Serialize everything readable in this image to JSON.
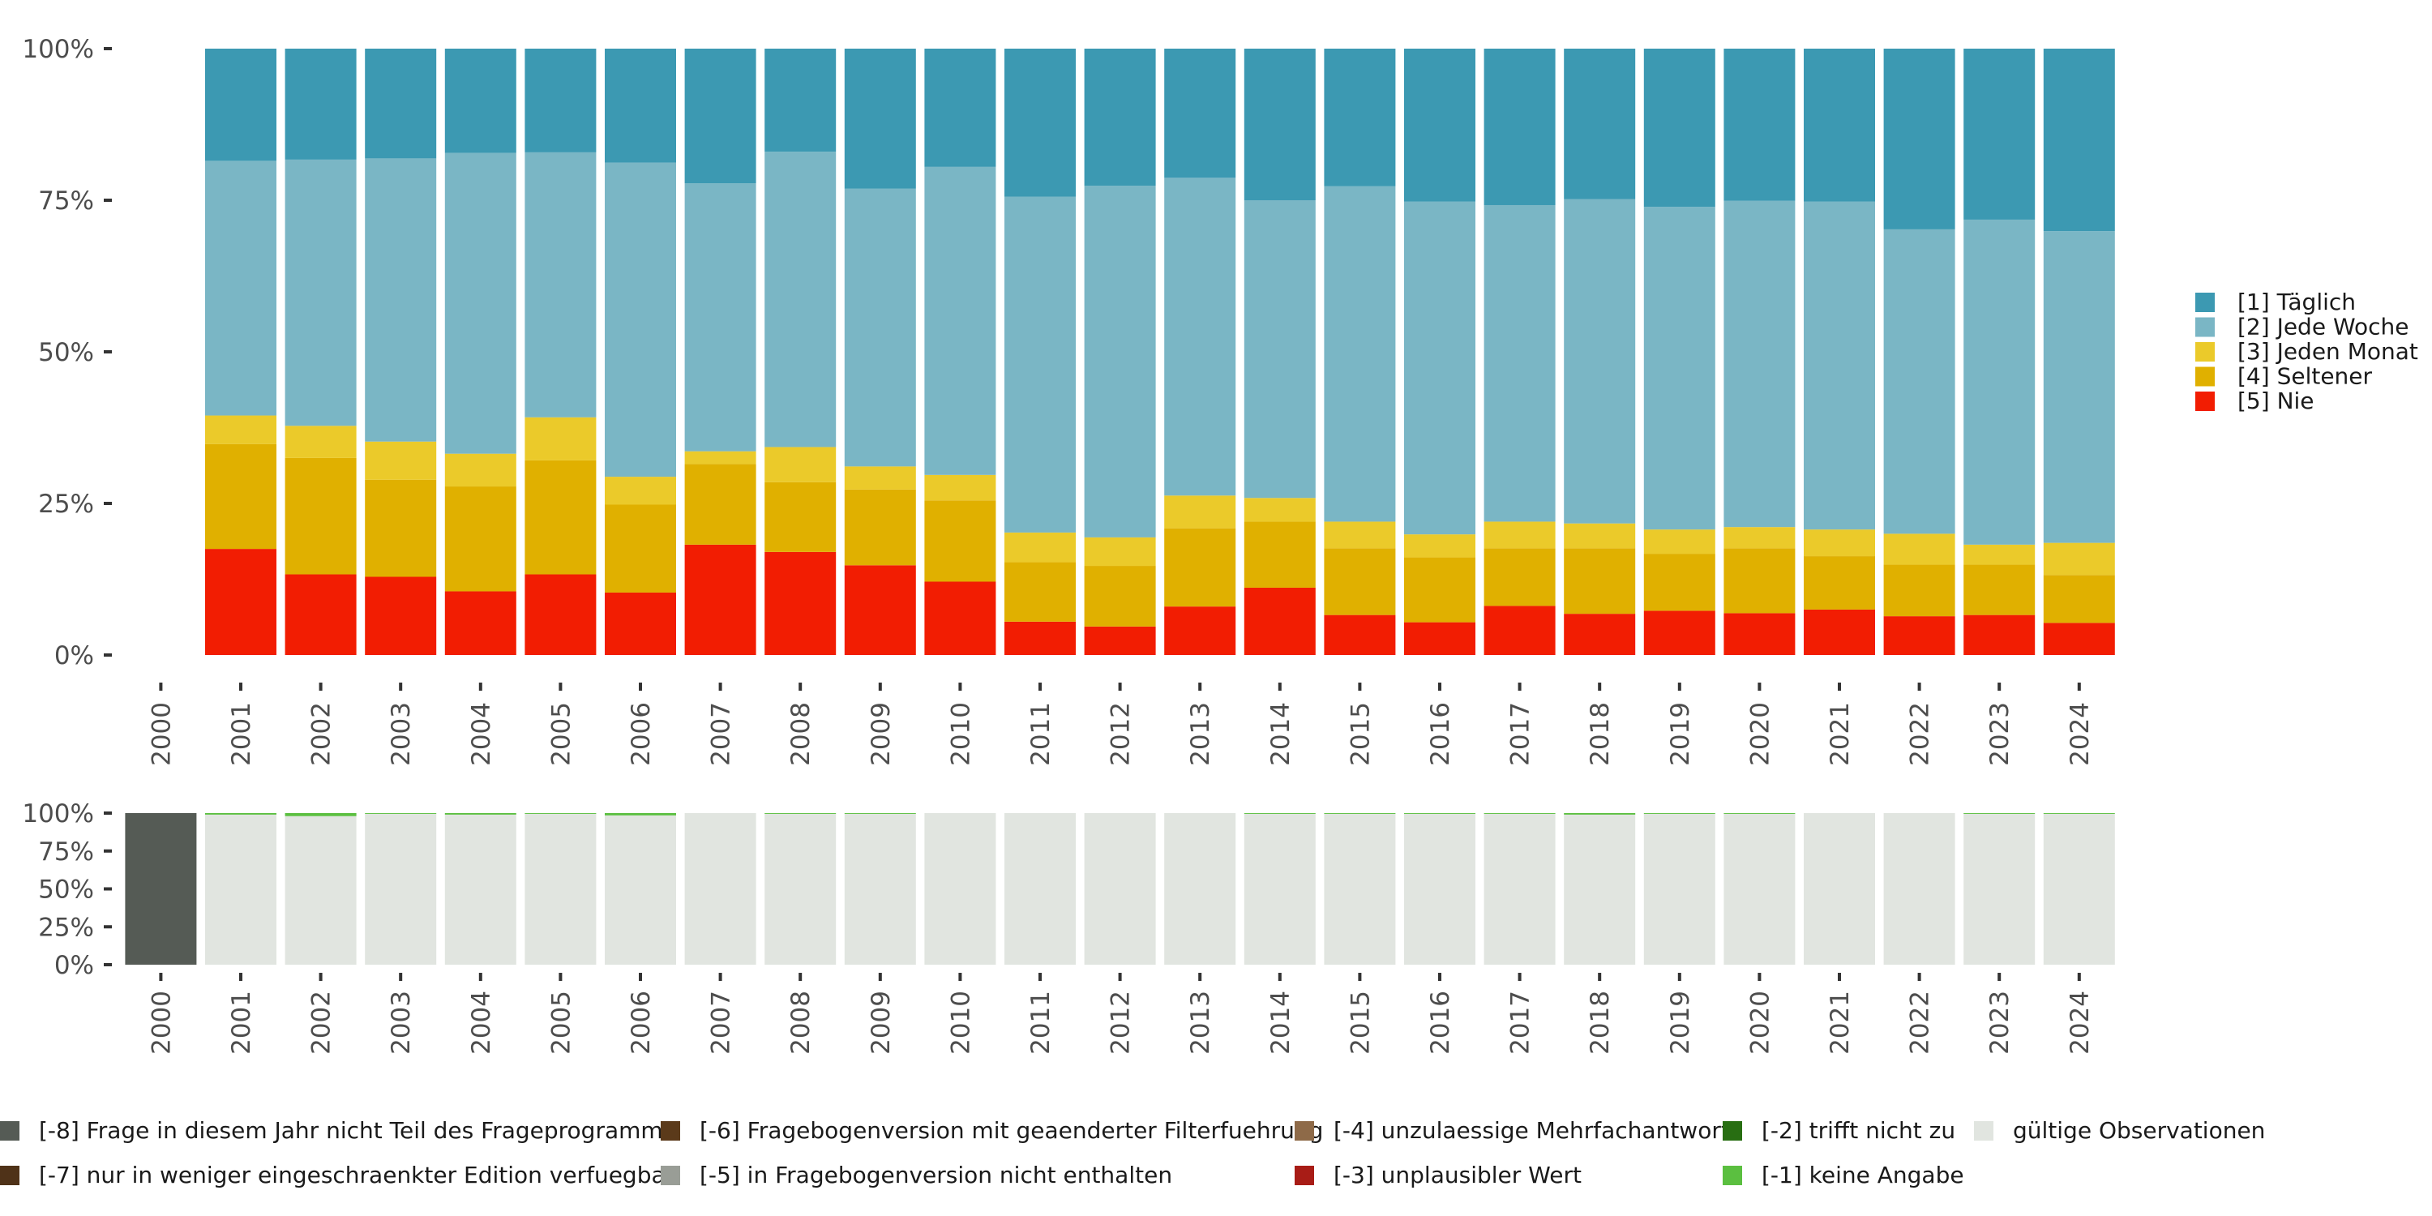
{
  "chart_data": [
    {
      "type": "bar",
      "stacked": true,
      "normalized": true,
      "title": "",
      "xlabel": "",
      "ylabel": "",
      "ylim": [
        0,
        100
      ],
      "y_ticks": [
        "0%",
        "25%",
        "50%",
        "75%",
        "100%"
      ],
      "y_tick_values": [
        0,
        25,
        50,
        75,
        100
      ],
      "categories": [
        "2000",
        "2001",
        "2002",
        "2003",
        "2004",
        "2005",
        "2006",
        "2007",
        "2008",
        "2009",
        "2010",
        "2011",
        "2012",
        "2013",
        "2014",
        "2015",
        "2016",
        "2017",
        "2018",
        "2019",
        "2020",
        "2021",
        "2022",
        "2023",
        "2024"
      ],
      "legend_position": "right",
      "series": [
        {
          "name": "[5] Nie",
          "color": "#f21d02",
          "values": [
            null,
            17.5,
            13.3,
            12.9,
            10.5,
            13.3,
            10.3,
            18.2,
            17.0,
            14.8,
            12.1,
            5.5,
            4.7,
            8.0,
            11.1,
            6.6,
            5.4,
            8.1,
            6.8,
            7.3,
            6.9,
            7.5,
            6.4,
            6.6,
            5.3
          ]
        },
        {
          "name": "[4] Seltener",
          "color": "#e0b000",
          "values": [
            null,
            17.3,
            19.2,
            16.0,
            17.3,
            18.8,
            14.5,
            13.3,
            11.5,
            12.5,
            13.4,
            9.8,
            10.0,
            12.9,
            10.9,
            11.0,
            10.7,
            9.5,
            10.8,
            9.4,
            10.7,
            8.8,
            8.5,
            8.3,
            7.9
          ]
        },
        {
          "name": "[3] Jeden Monat",
          "color": "#ebca2a",
          "values": [
            null,
            4.7,
            5.3,
            6.3,
            5.4,
            7.1,
            4.6,
            2.1,
            5.8,
            3.8,
            4.2,
            4.9,
            4.7,
            5.4,
            3.9,
            4.4,
            3.8,
            4.4,
            4.1,
            4.0,
            3.5,
            4.4,
            5.1,
            3.3,
            5.3
          ]
        },
        {
          "name": "[2] Jede Woche",
          "color": "#7ab6c5",
          "values": [
            null,
            42.0,
            43.9,
            46.7,
            49.6,
            43.7,
            51.8,
            44.2,
            48.7,
            45.8,
            50.8,
            55.4,
            58.0,
            52.4,
            49.1,
            55.3,
            54.9,
            52.2,
            53.5,
            53.2,
            53.8,
            54.1,
            50.2,
            53.6,
            51.4
          ]
        },
        {
          "name": "[1] Täglich",
          "color": "#3c99b2",
          "values": [
            null,
            18.5,
            18.3,
            18.1,
            17.2,
            17.1,
            18.8,
            22.2,
            17.0,
            23.1,
            19.5,
            24.4,
            22.6,
            21.3,
            25.0,
            22.7,
            25.2,
            25.8,
            24.8,
            26.1,
            25.1,
            25.2,
            29.8,
            28.2,
            30.1
          ]
        }
      ]
    },
    {
      "type": "bar",
      "stacked": true,
      "normalized": true,
      "title": "",
      "xlabel": "",
      "ylabel": "",
      "ylim": [
        0,
        100
      ],
      "y_ticks": [
        "0%",
        "25%",
        "50%",
        "75%",
        "100%"
      ],
      "y_tick_values": [
        0,
        25,
        50,
        75,
        100
      ],
      "categories": [
        "2000",
        "2001",
        "2002",
        "2003",
        "2004",
        "2005",
        "2006",
        "2007",
        "2008",
        "2009",
        "2010",
        "2011",
        "2012",
        "2013",
        "2014",
        "2015",
        "2016",
        "2017",
        "2018",
        "2019",
        "2020",
        "2021",
        "2022",
        "2023",
        "2024"
      ],
      "legend_position": "bottom",
      "series": [
        {
          "name": "gültige Observationen",
          "color": "#e1e5e0",
          "values": [
            0,
            99.0,
            98.0,
            99.5,
            99.0,
            99.5,
            98.5,
            100,
            99.5,
            99.5,
            100,
            100,
            100,
            100,
            99.5,
            99.5,
            99.5,
            99.5,
            99.0,
            99.5,
            99.5,
            100,
            100,
            99.5,
            99.5
          ]
        },
        {
          "name": "[-1] keine Angabe",
          "color": "#5bbf40",
          "values": [
            0,
            1.0,
            2.0,
            0.5,
            1.0,
            0.5,
            1.5,
            0,
            0.5,
            0.5,
            0,
            0,
            0,
            0,
            0.5,
            0.5,
            0.5,
            0.5,
            1.0,
            0.5,
            0.5,
            0,
            0,
            0.5,
            0.5
          ]
        },
        {
          "name": "[-2] trifft nicht zu",
          "color": "#286e12",
          "values": [
            0,
            0,
            0,
            0,
            0,
            0,
            0,
            0,
            0,
            0,
            0,
            0,
            0,
            0,
            0,
            0,
            0,
            0,
            0,
            0,
            0,
            0,
            0,
            0,
            0
          ]
        },
        {
          "name": "[-3] unplausibler Wert",
          "color": "#a81c16",
          "values": [
            0,
            0,
            0,
            0,
            0,
            0,
            0,
            0,
            0,
            0,
            0,
            0,
            0,
            0,
            0,
            0,
            0,
            0,
            0,
            0,
            0,
            0,
            0,
            0,
            0
          ]
        },
        {
          "name": "[-4] unzulaessige Mehrfachantwort",
          "color": "#8e6a48",
          "values": [
            0,
            0,
            0,
            0,
            0,
            0,
            0,
            0,
            0,
            0,
            0,
            0,
            0,
            0,
            0,
            0,
            0,
            0,
            0,
            0,
            0,
            0,
            0,
            0,
            0
          ]
        },
        {
          "name": "[-5] in Fragebogenversion nicht enthalten",
          "color": "#999d96",
          "values": [
            0,
            0,
            0,
            0,
            0,
            0,
            0,
            0,
            0,
            0,
            0,
            0,
            0,
            0,
            0,
            0,
            0,
            0,
            0,
            0,
            0,
            0,
            0,
            0,
            0
          ]
        },
        {
          "name": "[-6] Fragebogenversion mit geaenderter Filterfuehrung",
          "color": "#5b3a1a",
          "values": [
            0,
            0,
            0,
            0,
            0,
            0,
            0,
            0,
            0,
            0,
            0,
            0,
            0,
            0,
            0,
            0,
            0,
            0,
            0,
            0,
            0,
            0,
            0,
            0,
            0
          ]
        },
        {
          "name": "[-7] nur in weniger eingeschraenkter Edition verfuegbar",
          "color": "#4f3218",
          "values": [
            0,
            0,
            0,
            0,
            0,
            0,
            0,
            0,
            0,
            0,
            0,
            0,
            0,
            0,
            0,
            0,
            0,
            0,
            0,
            0,
            0,
            0,
            0,
            0,
            0
          ]
        },
        {
          "name": "[-8] Frage in diesem Jahr nicht Teil des Frageprogramms",
          "color": "#555b55",
          "values": [
            100,
            0,
            0,
            0,
            0,
            0,
            0,
            0,
            0,
            0,
            0,
            0,
            0,
            0,
            0,
            0,
            0,
            0,
            0,
            0,
            0,
            0,
            0,
            0,
            0
          ]
        }
      ]
    }
  ],
  "legend_top": [
    {
      "label": "[1] Täglich",
      "color": "#3c99b2"
    },
    {
      "label": "[2] Jede Woche",
      "color": "#7ab6c5"
    },
    {
      "label": "[3] Jeden Monat",
      "color": "#ebca2a"
    },
    {
      "label": "[4] Seltener",
      "color": "#e0b000"
    },
    {
      "label": "[5] Nie",
      "color": "#f21d02"
    }
  ],
  "legend_bottom": [
    {
      "label": "[-8] Frage in diesem Jahr nicht Teil des Frageprogramms",
      "color": "#555b55"
    },
    {
      "label": "[-7] nur in weniger eingeschraenkter Edition verfuegbar",
      "color": "#4f3218"
    },
    {
      "label": "[-6] Fragebogenversion mit geaenderter Filterfuehrung",
      "color": "#5b3a1a"
    },
    {
      "label": "[-5] in Fragebogenversion nicht enthalten",
      "color": "#999d96"
    },
    {
      "label": "[-4] unzulaessige Mehrfachantwort",
      "color": "#8e6a48"
    },
    {
      "label": "[-3] unplausibler Wert",
      "color": "#a81c16"
    },
    {
      "label": "[-2] trifft nicht zu",
      "color": "#286e12"
    },
    {
      "label": "[-1] keine Angabe",
      "color": "#5bbf40"
    },
    {
      "label": "gültige Observationen",
      "color": "#e1e5e0"
    }
  ]
}
